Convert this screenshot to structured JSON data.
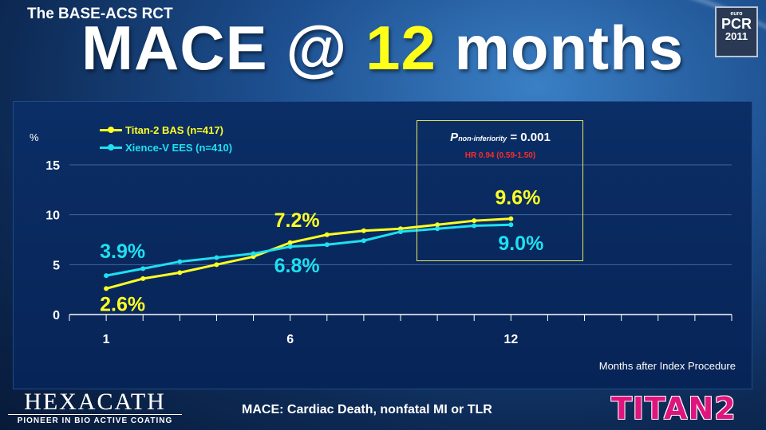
{
  "supertitle": "The BASE-ACS RCT",
  "headline": {
    "pre": "MACE @ ",
    "highlight": "12",
    "post": " months"
  },
  "logos": {
    "pcr": {
      "euro": "euro",
      "pcr": "PCR",
      "year": "2011"
    },
    "hexacath": {
      "name": "HEXACATH",
      "tagline": "PIONEER IN BIO ACTIVE COATING"
    },
    "titan": {
      "name": "TITAN2"
    }
  },
  "pvalue": {
    "p": "P",
    "sub": "non-inferiority",
    "value": " = 0.001",
    "hr": "HR 0.94 (0.59-1.50)"
  },
  "footer": "MACE: Cardiac Death, nonfatal MI or TLR",
  "colors": {
    "yellow": "#ffff22",
    "cyan": "#1ee0f0",
    "hr_red": "#ff2a2a"
  },
  "chart_data": {
    "type": "line",
    "ylabel": "%",
    "xlabel": "Months after Index Procedure",
    "x": [
      1,
      2,
      3,
      4,
      5,
      6,
      7,
      8,
      9,
      10,
      11,
      12
    ],
    "xticks": [
      1,
      6,
      12
    ],
    "xlim": [
      0,
      18
    ],
    "yticks": [
      0,
      5,
      10,
      15
    ],
    "ylim": [
      0,
      15
    ],
    "grid": true,
    "legend_position": "top-left",
    "series": [
      {
        "name": "Titan-2 BAS (n=417)",
        "color": "#ffff22",
        "values": [
          2.6,
          3.6,
          4.2,
          5.0,
          5.8,
          7.2,
          8.0,
          8.4,
          8.6,
          9.0,
          9.4,
          9.6
        ]
      },
      {
        "name": "Xience-V EES (n=410)",
        "color": "#1ee0f0",
        "values": [
          3.9,
          4.6,
          5.3,
          5.7,
          6.1,
          6.8,
          7.0,
          7.4,
          8.3,
          8.6,
          8.9,
          9.0
        ]
      }
    ],
    "annotations": [
      {
        "text": "3.9%",
        "color": "#1ee0f0"
      },
      {
        "text": "2.6%",
        "color": "#ffff22"
      },
      {
        "text": "7.2%",
        "color": "#ffff22"
      },
      {
        "text": "6.8%",
        "color": "#1ee0f0"
      },
      {
        "text": "9.6%",
        "color": "#ffff22"
      },
      {
        "text": "9.0%",
        "color": "#1ee0f0"
      }
    ]
  }
}
